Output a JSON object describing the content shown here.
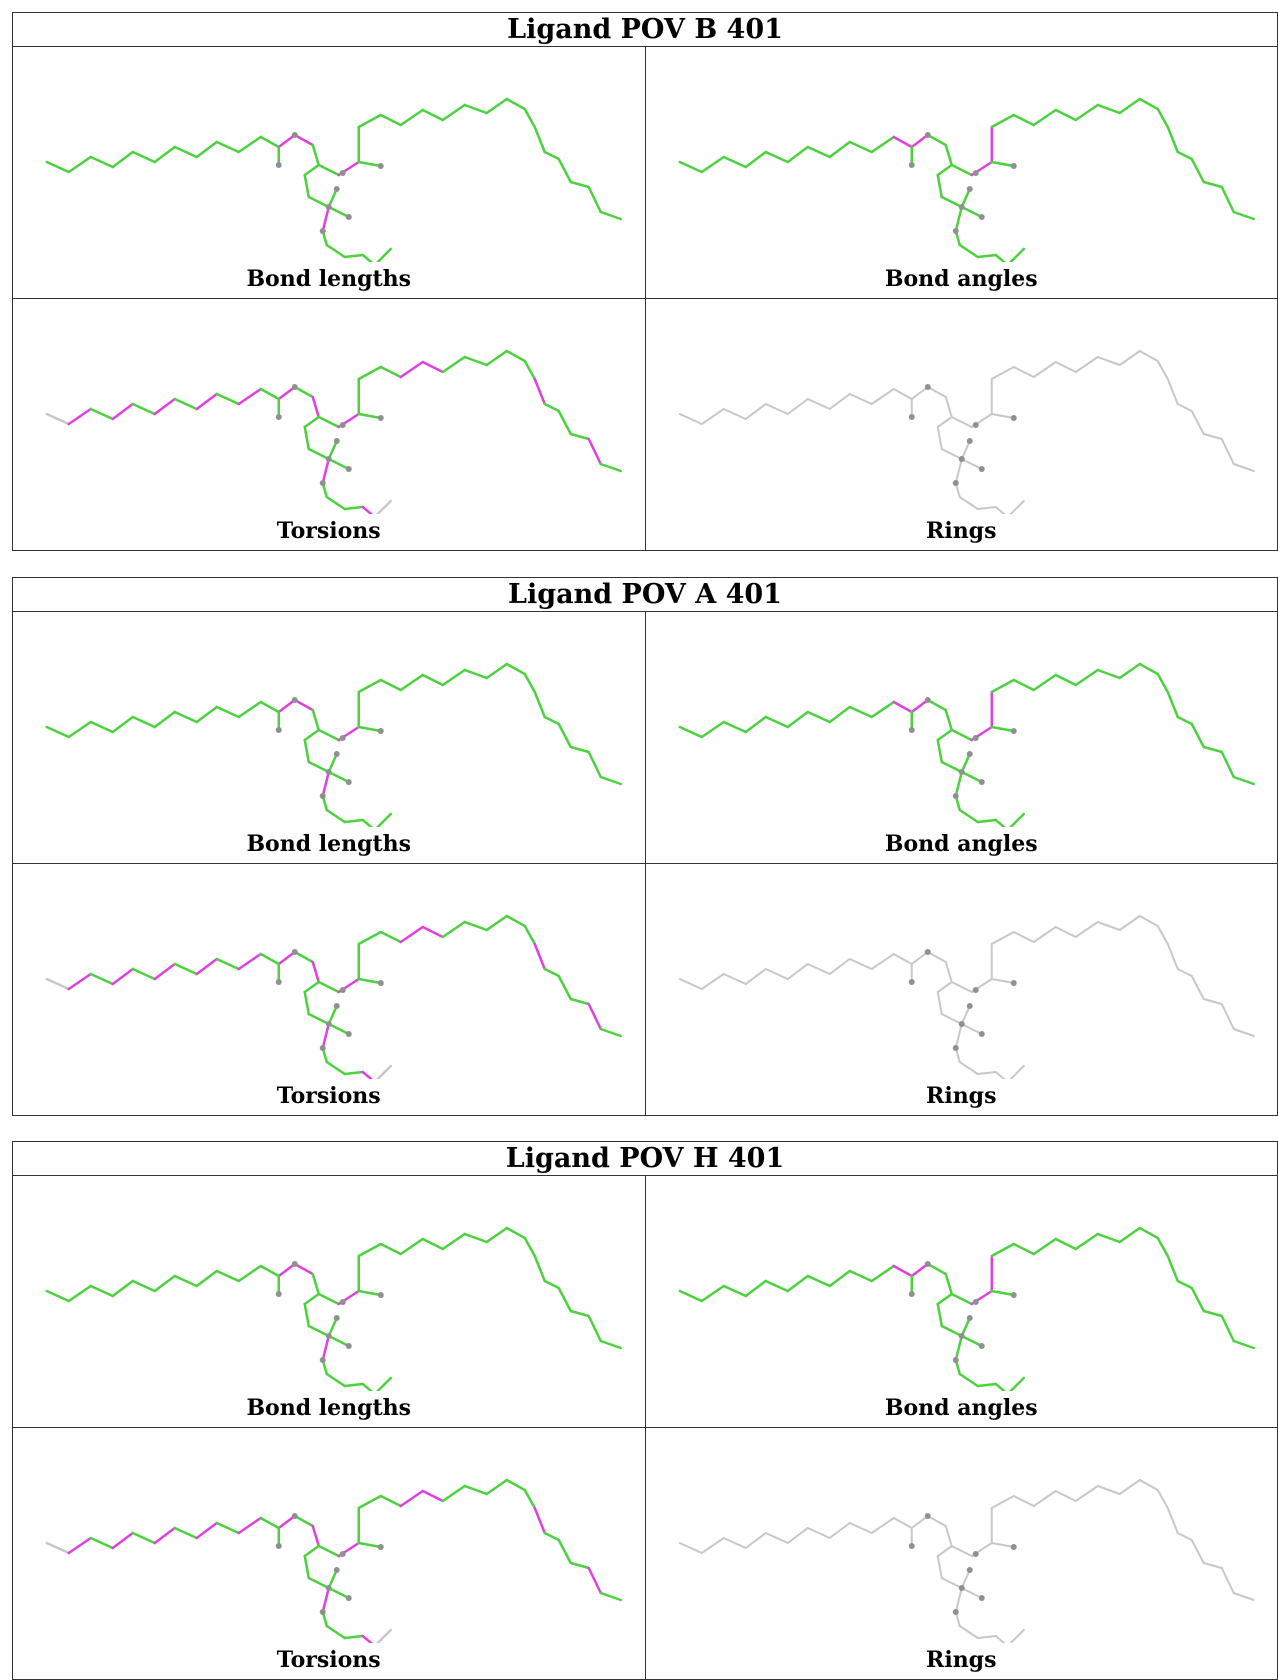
{
  "tables": [
    {
      "title": "Ligand POV B 401",
      "panels": [
        {
          "caption": "Bond lengths",
          "scheme": "lengths"
        },
        {
          "caption": "Bond angles",
          "scheme": "angles"
        },
        {
          "caption": "Torsions",
          "scheme": "torsions"
        },
        {
          "caption": "Rings",
          "scheme": "rings"
        }
      ]
    },
    {
      "title": "Ligand POV A 401",
      "panels": [
        {
          "caption": "Bond lengths",
          "scheme": "lengths"
        },
        {
          "caption": "Bond angles",
          "scheme": "angles"
        },
        {
          "caption": "Torsions",
          "scheme": "torsions"
        },
        {
          "caption": "Rings",
          "scheme": "rings"
        }
      ]
    },
    {
      "title": "Ligand POV H 401",
      "panels": [
        {
          "caption": "Bond lengths",
          "scheme": "lengths"
        },
        {
          "caption": "Bond angles",
          "scheme": "angles"
        },
        {
          "caption": "Torsions",
          "scheme": "torsions"
        },
        {
          "caption": "Rings",
          "scheme": "rings"
        }
      ]
    }
  ],
  "colors": {
    "ok": "#4cd13f",
    "outlier": "#e040e0",
    "neutral": "#c8c8c8",
    "atom": "#909090"
  }
}
